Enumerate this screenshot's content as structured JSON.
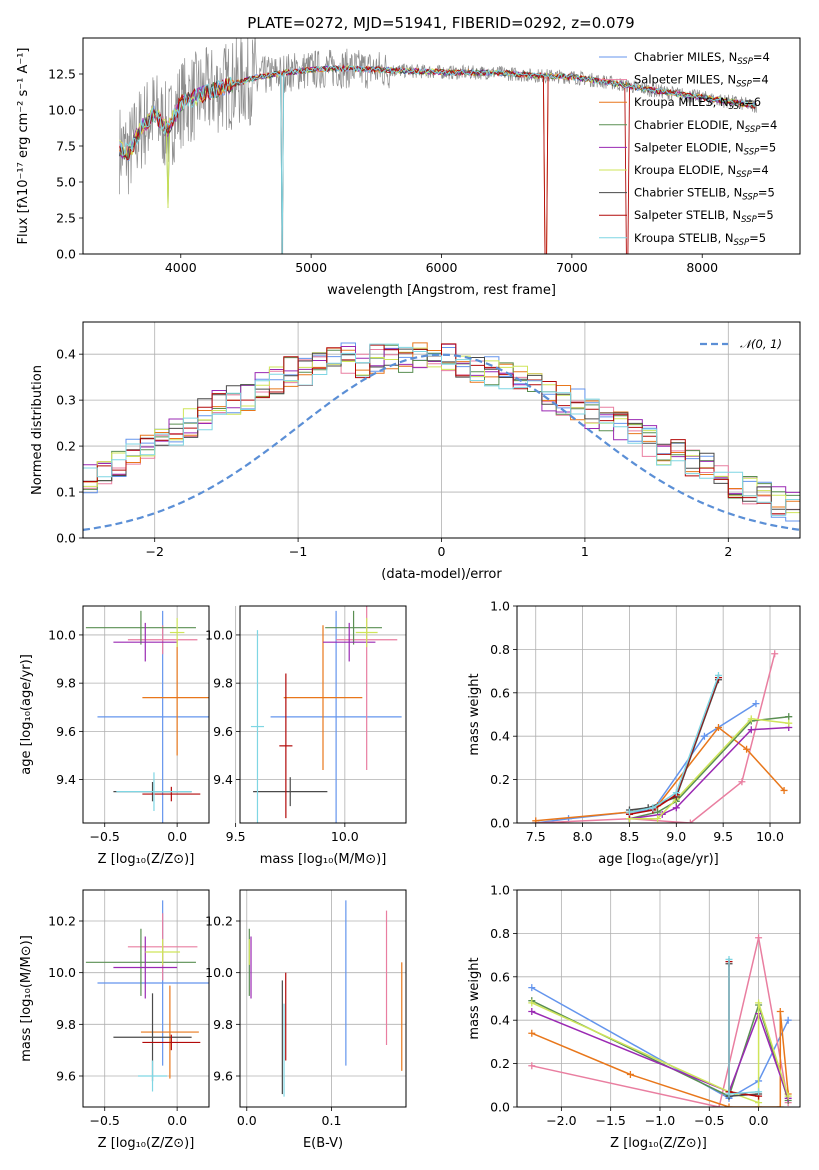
{
  "colors": [
    "#6495ed",
    "#e97ea0",
    "#e8771b",
    "#5a8f52",
    "#9a29b3",
    "#cfe55a",
    "#4a4a4a",
    "#b20a0a",
    "#7fd6e3"
  ],
  "chart_data": [
    {
      "id": "spectrum",
      "type": "line",
      "title": "PLATE=0272, MJD=51941, FIBERID=0292, z=0.079",
      "xlabel": "wavelength [Angstrom, rest frame]",
      "ylabel": "Flux [fλ10⁻¹⁷ erg cm⁻² s⁻¹ A⁻¹]",
      "xlim": [
        3250,
        8750
      ],
      "ylim": [
        0,
        15
      ],
      "xticks": [
        "4000",
        "5000",
        "6000",
        "7000",
        "8000"
      ],
      "yticks": [
        "0.0",
        "2.5",
        "5.0",
        "7.5",
        "10.0",
        "12.5"
      ],
      "legend_position": "upper right",
      "series": [
        {
          "name": "Chabrier MILES, N_SSP=4",
          "color_index": 0
        },
        {
          "name": "Salpeter MILES, N_SSP=4",
          "color_index": 1
        },
        {
          "name": "Kroupa MILES, N_SSP=6",
          "color_index": 2
        },
        {
          "name": "Chabrier ELODIE, N_SSP=4",
          "color_index": 3
        },
        {
          "name": "Salpeter ELODIE, N_SSP=5",
          "color_index": 4
        },
        {
          "name": "Kroupa ELODIE, N_SSP=4",
          "color_index": 5
        },
        {
          "name": "Chabrier STELIB, N_SSP=5",
          "color_index": 6
        },
        {
          "name": "Salpeter STELIB, N_SSP=5",
          "color_index": 7
        },
        {
          "name": "Kroupa STELIB, N_SSP=5",
          "color_index": 8
        }
      ],
      "model_curve": {
        "x": [
          3500,
          3600,
          3700,
          3800,
          3900,
          4000,
          4200,
          4400,
          4600,
          4800,
          5000,
          5200,
          5500,
          5800,
          6100,
          6400,
          6700,
          7000,
          7300,
          7600,
          7900,
          8200,
          8400
        ],
        "y": [
          7.5,
          7.0,
          8.8,
          9.8,
          8.6,
          10.5,
          11.2,
          11.8,
          12.3,
          12.6,
          12.8,
          12.9,
          12.8,
          12.7,
          12.6,
          12.6,
          12.4,
          12.3,
          11.9,
          11.4,
          11.0,
          10.6,
          10.3
        ]
      },
      "data_range": [
        3530,
        8420
      ]
    },
    {
      "id": "residuals",
      "type": "step",
      "xlabel": "(data-model)/error",
      "ylabel": "Normed distribution",
      "xlim": [
        -2.5,
        2.5
      ],
      "ylim": [
        0,
        0.47
      ],
      "xticks": [
        "−2",
        "−1",
        "0",
        "1",
        "2"
      ],
      "yticks": [
        "0.0",
        "0.1",
        "0.2",
        "0.3",
        "0.4"
      ],
      "legend": "𝒩(0, 1)",
      "gaussian": {
        "mu": 0,
        "sigma": 1
      },
      "bin_width": 0.1,
      "base_hist": [
        0.03,
        0.04,
        0.05,
        0.06,
        0.06,
        0.07,
        0.08,
        0.09,
        0.1,
        0.11,
        0.13,
        0.15,
        0.16,
        0.18,
        0.19,
        0.21,
        0.23,
        0.25,
        0.27,
        0.29,
        0.3,
        0.31,
        0.33,
        0.34,
        0.36,
        0.36,
        0.37,
        0.38,
        0.39,
        0.38,
        0.39,
        0.4,
        0.39,
        0.4,
        0.38,
        0.39,
        0.38,
        0.37,
        0.36,
        0.35,
        0.34,
        0.33,
        0.31,
        0.3,
        0.29,
        0.27,
        0.26,
        0.24,
        0.23,
        0.21,
        0.19,
        0.18,
        0.16,
        0.15,
        0.13,
        0.12,
        0.1,
        0.09,
        0.08,
        0.07,
        0.06,
        0.06,
        0.05,
        0.05,
        0.04,
        0.04,
        0.03,
        0.03,
        0.03,
        0.03
      ]
    },
    {
      "id": "age_vs_Z",
      "type": "errorbar",
      "xlabel": "Z [log₁₀(Z/Z⊙)]",
      "ylabel": "age  [log₁₀(age/yr)]",
      "xlim": [
        -0.65,
        0.22
      ],
      "ylim": [
        9.22,
        10.12
      ],
      "xticks": [
        "−0.5",
        "0.0"
      ],
      "yticks": [
        "9.4",
        "9.6",
        "9.8",
        "10.0"
      ],
      "points": [
        {
          "c": 0,
          "x": -0.1,
          "xe": 0.45,
          "y": 9.66,
          "ye": 0.44
        },
        {
          "c": 1,
          "x": -0.1,
          "xe": 0.24,
          "y": 9.98,
          "ye": 0.06
        },
        {
          "c": 2,
          "x": 0.0,
          "xe": 0.24,
          "y": 9.74,
          "ye": 0.24
        },
        {
          "c": 3,
          "x": -0.25,
          "xe": 0.38,
          "y": 10.03,
          "ye": 0.07
        },
        {
          "c": 4,
          "x": -0.22,
          "xe": 0.22,
          "y": 9.97,
          "ye": 0.08
        },
        {
          "c": 5,
          "x": 0.0,
          "xe": 0.05,
          "y": 10.01,
          "ye": 0.06
        },
        {
          "c": 6,
          "x": -0.17,
          "xe": 0.27,
          "y": 9.35,
          "ye": 0.04
        },
        {
          "c": 7,
          "x": -0.04,
          "xe": 0.2,
          "y": 9.34,
          "ye": 0.03
        },
        {
          "c": 8,
          "x": -0.16,
          "xe": 0.26,
          "y": 9.35,
          "ye": 0.08
        }
      ]
    },
    {
      "id": "age_vs_mass",
      "type": "errorbar",
      "xlabel": "mass [log₁₀(M/M⊙)]",
      "ylabel": "",
      "xlim": [
        9.52,
        10.28
      ],
      "ylim": [
        9.22,
        10.12
      ],
      "xticks": [
        "9.5",
        "10.0"
      ],
      "yticks": [
        "9.4",
        "9.6",
        "9.8",
        "10.0"
      ],
      "points": [
        {
          "c": 0,
          "x": 9.96,
          "xe": 0.3,
          "y": 9.66,
          "ye": 0.44
        },
        {
          "c": 1,
          "x": 10.1,
          "xe": 0.14,
          "y": 9.98,
          "ye": 0.54
        },
        {
          "c": 2,
          "x": 9.9,
          "xe": 0.18,
          "y": 9.74,
          "ye": 0.3
        },
        {
          "c": 3,
          "x": 10.04,
          "xe": 0.13,
          "y": 10.03,
          "ye": 0.07
        },
        {
          "c": 4,
          "x": 10.02,
          "xe": 0.12,
          "y": 9.97,
          "ye": 0.08
        },
        {
          "c": 5,
          "x": 10.1,
          "xe": 0.05,
          "y": 10.01,
          "ye": 0.06
        },
        {
          "c": 6,
          "x": 9.75,
          "xe": 0.17,
          "y": 9.35,
          "ye": 0.06
        },
        {
          "c": 7,
          "x": 9.73,
          "xe": 0.03,
          "y": 9.54,
          "ye": 0.3
        },
        {
          "c": 8,
          "x": 9.6,
          "xe": 0.03,
          "y": 9.62,
          "ye": 0.4
        }
      ]
    },
    {
      "id": "mass_weight_vs_age",
      "type": "line",
      "xlabel": "age  [log₁₀(age/yr)]",
      "ylabel": "mass weight",
      "xlim": [
        7.3,
        10.32
      ],
      "ylim": [
        0,
        1.0
      ],
      "xticks": [
        "7.5",
        "8.0",
        "8.5",
        "9.0",
        "9.5",
        "10.0"
      ],
      "yticks": [
        "0.0",
        "0.2",
        "0.4",
        "0.6",
        "0.8",
        "1.0"
      ],
      "series": [
        {
          "c": 0,
          "x": [
            7.5,
            7.85,
            8.5,
            8.75,
            9.3,
            9.85
          ],
          "y": [
            0.0,
            0.02,
            0.05,
            0.06,
            0.4,
            0.55
          ]
        },
        {
          "c": 1,
          "x": [
            7.5,
            8.5,
            9.15,
            9.7,
            10.05
          ],
          "y": [
            0.0,
            0.02,
            0.0,
            0.19,
            0.78
          ]
        },
        {
          "c": 2,
          "x": [
            7.5,
            8.5,
            8.8,
            9.45,
            9.75,
            10.15
          ],
          "y": [
            0.01,
            0.05,
            0.08,
            0.44,
            0.34,
            0.15
          ]
        },
        {
          "c": 3,
          "x": [
            8.5,
            8.8,
            9.0,
            9.8,
            10.2
          ],
          "y": [
            0.02,
            0.05,
            0.1,
            0.47,
            0.49
          ]
        },
        {
          "c": 4,
          "x": [
            8.5,
            8.85,
            9.0,
            9.8,
            10.2
          ],
          "y": [
            0.02,
            0.04,
            0.07,
            0.43,
            0.44
          ]
        },
        {
          "c": 5,
          "x": [
            8.5,
            8.8,
            9.0,
            9.8,
            10.2
          ],
          "y": [
            0.02,
            0.02,
            0.11,
            0.48,
            0.46
          ]
        },
        {
          "c": 6,
          "x": [
            8.5,
            8.7,
            9.0,
            9.45
          ],
          "y": [
            0.06,
            0.07,
            0.12,
            0.66
          ]
        },
        {
          "c": 7,
          "x": [
            8.5,
            8.75,
            9.0,
            9.45
          ],
          "y": [
            0.04,
            0.06,
            0.13,
            0.67
          ]
        },
        {
          "c": 8,
          "x": [
            8.5,
            8.75,
            9.0,
            9.45
          ],
          "y": [
            0.05,
            0.07,
            0.14,
            0.68
          ]
        }
      ]
    },
    {
      "id": "mass_vs_Z",
      "type": "errorbar",
      "xlabel": "Z [log₁₀(Z/Z⊙)]",
      "ylabel": "mass [log₁₀(M/M⊙)]",
      "xlim": [
        -0.65,
        0.22
      ],
      "ylim": [
        9.48,
        10.32
      ],
      "xticks": [
        "−0.5",
        "0.0"
      ],
      "yticks": [
        "9.6",
        "9.8",
        "10.0",
        "10.2"
      ],
      "points": [
        {
          "c": 0,
          "x": -0.1,
          "xe": 0.45,
          "y": 9.96,
          "ye": 0.32
        },
        {
          "c": 1,
          "x": -0.1,
          "xe": 0.24,
          "y": 10.1,
          "ye": 0.13
        },
        {
          "c": 2,
          "x": -0.05,
          "xe": 0.2,
          "y": 9.77,
          "ye": 0.18
        },
        {
          "c": 3,
          "x": -0.25,
          "xe": 0.38,
          "y": 10.04,
          "ye": 0.13
        },
        {
          "c": 4,
          "x": -0.22,
          "xe": 0.22,
          "y": 10.02,
          "ye": 0.12
        },
        {
          "c": 5,
          "x": -0.1,
          "xe": 0.12,
          "y": 10.08,
          "ye": 0.05
        },
        {
          "c": 6,
          "x": -0.17,
          "xe": 0.27,
          "y": 9.75,
          "ye": 0.17
        },
        {
          "c": 7,
          "x": -0.04,
          "xe": 0.2,
          "y": 9.73,
          "ye": 0.03
        },
        {
          "c": 8,
          "x": -0.17,
          "xe": 0.1,
          "y": 9.6,
          "ye": 0.06
        }
      ]
    },
    {
      "id": "mass_vs_ebv",
      "type": "errorbar",
      "xlabel": "E(B-V)",
      "ylabel": "",
      "xlim": [
        -0.008,
        0.188
      ],
      "ylim": [
        9.48,
        10.32
      ],
      "xticks": [
        "0.0",
        "0.1"
      ],
      "yticks": [
        "9.6",
        "9.8",
        "10.0",
        "10.2"
      ],
      "points": [
        {
          "c": 0,
          "x": 0.117,
          "xe": 0,
          "y": 9.96,
          "ye": 0.32
        },
        {
          "c": 1,
          "x": 0.165,
          "xe": 0,
          "y": 9.98,
          "ye": 0.26
        },
        {
          "c": 2,
          "x": 0.183,
          "xe": 0,
          "y": 9.83,
          "ye": 0.21
        },
        {
          "c": 3,
          "x": 0.003,
          "xe": 0,
          "y": 10.04,
          "ye": 0.13
        },
        {
          "c": 4,
          "x": 0.005,
          "xe": 0,
          "y": 10.02,
          "ye": 0.12
        },
        {
          "c": 5,
          "x": 0.003,
          "xe": 0,
          "y": 10.08,
          "ye": 0.05
        },
        {
          "c": 6,
          "x": 0.042,
          "xe": 0,
          "y": 9.75,
          "ye": 0.22
        },
        {
          "c": 7,
          "x": 0.046,
          "xe": 0,
          "y": 9.83,
          "ye": 0.17
        },
        {
          "c": 8,
          "x": 0.044,
          "xe": 0,
          "y": 9.7,
          "ye": 0.18
        }
      ]
    },
    {
      "id": "mass_weight_vs_Z",
      "type": "line",
      "xlabel": "Z [log₁₀(Z/Z⊙)]",
      "ylabel": "mass weight",
      "xlim": [
        -2.45,
        0.42
      ],
      "ylim": [
        0,
        1.0
      ],
      "xticks": [
        "−2.0",
        "−1.5",
        "−1.0",
        "−0.5",
        "0.0"
      ],
      "yticks": [
        "0.0",
        "0.2",
        "0.4",
        "0.6",
        "0.8",
        "1.0"
      ],
      "series": [
        {
          "c": 0,
          "x": [
            -2.3,
            -0.3,
            0.0,
            0.3
          ],
          "y": [
            0.55,
            0.04,
            0.12,
            0.4
          ]
        },
        {
          "c": 1,
          "x": [
            -2.3,
            -0.4,
            0.0,
            0.3
          ],
          "y": [
            0.19,
            0.0,
            0.78,
            0.02
          ]
        },
        {
          "c": 2,
          "x": [
            -2.3,
            -1.3,
            -0.3,
            0.0,
            0.22,
            0.22,
            0.3
          ],
          "y": [
            0.34,
            0.15,
            0.0,
            0.0,
            0.0,
            0.44,
            0.06
          ]
        },
        {
          "c": 3,
          "x": [
            -2.3,
            -0.3,
            0.0,
            0.3
          ],
          "y": [
            0.49,
            0.05,
            0.47,
            0.03
          ]
        },
        {
          "c": 4,
          "x": [
            -2.3,
            -0.3,
            0.0,
            0.3
          ],
          "y": [
            0.44,
            0.07,
            0.43,
            0.04
          ]
        },
        {
          "c": 5,
          "x": [
            -2.3,
            -0.3,
            0.0,
            0.0,
            0.3
          ],
          "y": [
            0.48,
            0.07,
            0.02,
            0.48,
            0.05
          ]
        },
        {
          "c": 6,
          "x": [
            -0.3,
            -0.3,
            0.0
          ],
          "y": [
            0.66,
            0.05,
            0.06
          ]
        },
        {
          "c": 7,
          "x": [
            -0.3,
            -0.3,
            0.0
          ],
          "y": [
            0.67,
            0.07,
            0.05
          ]
        },
        {
          "c": 8,
          "x": [
            -0.3,
            -0.3,
            0.0
          ],
          "y": [
            0.68,
            0.06,
            0.07
          ]
        }
      ]
    }
  ]
}
